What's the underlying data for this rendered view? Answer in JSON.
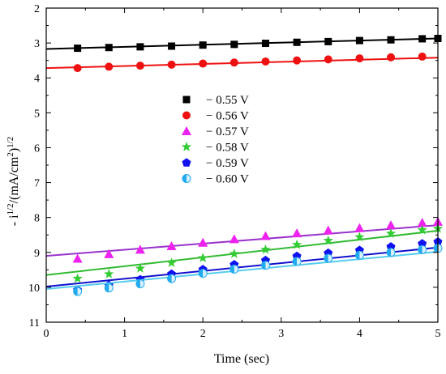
{
  "chart_data": {
    "type": "scatter",
    "xlabel": "Time (sec)",
    "ylabel_parts": [
      "- i",
      "1/2",
      "/(mA/cm",
      "2",
      ")",
      "1/2"
    ],
    "xlim": [
      0,
      5
    ],
    "ylim": [
      2,
      11
    ],
    "y_inverted": true,
    "xticks": [
      0,
      1,
      2,
      3,
      4,
      5
    ],
    "yticks": [
      2,
      3,
      4,
      5,
      6,
      7,
      8,
      9,
      10,
      11
    ],
    "grid": false,
    "legend_position": "center-left",
    "series": [
      {
        "name": "− 0.55 V",
        "marker": "square",
        "color": "#000000",
        "fit_color": "#000000",
        "x": [
          0.4,
          0.8,
          1.2,
          1.6,
          2.0,
          2.4,
          2.8,
          3.2,
          3.6,
          4.0,
          4.4,
          4.8,
          5.0
        ],
        "y": [
          3.15,
          3.13,
          3.11,
          3.09,
          3.06,
          3.04,
          3.01,
          2.98,
          2.96,
          2.93,
          2.91,
          2.88,
          2.87
        ],
        "fit": [
          3.17,
          2.87
        ]
      },
      {
        "name": "− 0.56 V",
        "marker": "circle",
        "color": "#ee1111",
        "fit_color": "#ee1111",
        "x": [
          0.4,
          0.8,
          1.2,
          1.6,
          2.0,
          2.4,
          2.8,
          3.2,
          3.6,
          4.0,
          4.4,
          4.8
        ],
        "y": [
          3.72,
          3.68,
          3.65,
          3.62,
          3.59,
          3.56,
          3.53,
          3.5,
          3.47,
          3.44,
          3.41,
          3.39
        ],
        "fit": [
          3.72,
          3.42
        ]
      },
      {
        "name": "− 0.57 V",
        "marker": "triangle",
        "color": "#ee22ee",
        "fit_color": "#9933cc",
        "x": [
          0.4,
          0.8,
          1.2,
          1.6,
          2.0,
          2.4,
          2.8,
          3.2,
          3.6,
          4.0,
          4.4,
          4.8,
          5.0
        ],
        "y": [
          9.18,
          9.05,
          8.92,
          8.82,
          8.72,
          8.62,
          8.53,
          8.45,
          8.37,
          8.3,
          8.22,
          8.15,
          8.12
        ],
        "fit": [
          9.1,
          8.22
        ]
      },
      {
        "name": "− 0.58 V",
        "marker": "star",
        "color": "#33cc33",
        "fit_color": "#33bb33",
        "x": [
          0.4,
          0.8,
          1.2,
          1.6,
          2.0,
          2.4,
          2.8,
          3.2,
          3.6,
          4.0,
          4.4,
          4.8,
          5.0
        ],
        "y": [
          9.75,
          9.62,
          9.46,
          9.3,
          9.16,
          9.04,
          8.92,
          8.78,
          8.66,
          8.56,
          8.46,
          8.36,
          8.32
        ],
        "fit": [
          9.65,
          8.38
        ]
      },
      {
        "name": "− 0.59 V",
        "marker": "pentagon",
        "color": "#1111ee",
        "fit_color": "#1111cc",
        "x": [
          0.4,
          0.8,
          1.2,
          1.6,
          2.0,
          2.4,
          2.8,
          3.2,
          3.6,
          4.0,
          4.4,
          4.8,
          5.0
        ],
        "y": [
          10.08,
          9.94,
          9.78,
          9.62,
          9.49,
          9.35,
          9.23,
          9.11,
          9.02,
          8.94,
          8.84,
          8.75,
          8.7
        ],
        "fit": [
          9.98,
          8.86
        ]
      },
      {
        "name": "− 0.60 V",
        "marker": "half-circle",
        "color": "#22aaee",
        "fit_color": "#55ccee",
        "x": [
          0.4,
          0.8,
          1.2,
          1.6,
          2.0,
          2.4,
          2.8,
          3.2,
          3.6,
          4.0,
          4.4,
          4.8,
          5.0
        ],
        "y": [
          10.12,
          10.02,
          9.9,
          9.75,
          9.6,
          9.48,
          9.37,
          9.26,
          9.17,
          9.08,
          9.0,
          8.92,
          8.88
        ],
        "fit": [
          10.05,
          8.98
        ]
      }
    ]
  }
}
